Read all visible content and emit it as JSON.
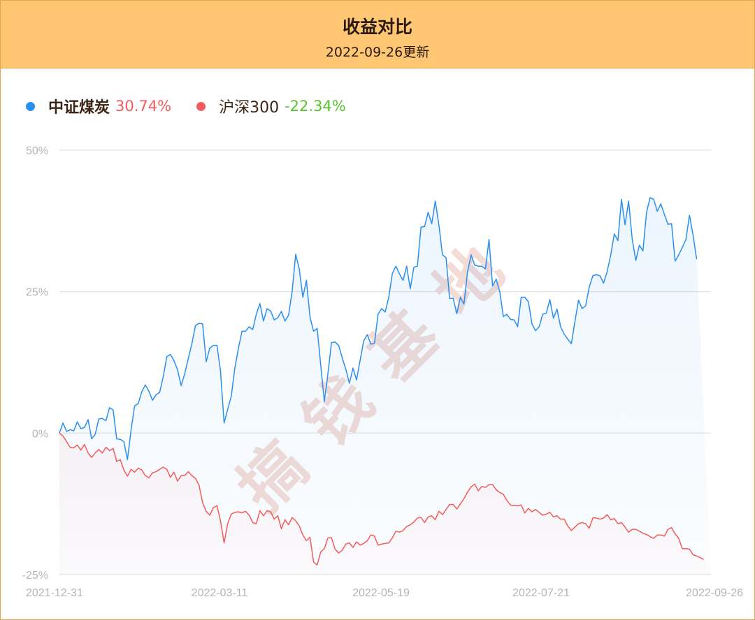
{
  "header": {
    "title": "收益对比",
    "subtitle": "2022-09-26更新"
  },
  "watermark": "搞钱基地",
  "legend": [
    {
      "name": "中证煤炭",
      "value": "30.74%",
      "color": "#2b8ff0",
      "value_color": "#f25c5c"
    },
    {
      "name": "沪深300",
      "value": "-22.34%",
      "color": "#f25c5c",
      "value_color": "#57c42e"
    }
  ],
  "chart_data": {
    "type": "area",
    "title": "收益对比",
    "subtitle": "2022-09-26更新",
    "ylim": [
      -25,
      50
    ],
    "yticks": [
      50,
      25,
      0,
      -25
    ],
    "ytick_labels": [
      "50%",
      "25%",
      "0%",
      "-25%"
    ],
    "x_tick_labels": [
      "2021-12-31",
      "2022-03-11",
      "2022-05-19",
      "2022-07-21",
      "2022-09-26"
    ],
    "grid": true,
    "legend_position": "top-left",
    "n_points": 183,
    "series": [
      {
        "name": "中证煤炭",
        "color": "#2b8ff0",
        "values": [
          0,
          1.8,
          0.3,
          0.6,
          0.4,
          2.0,
          0.8,
          1.0,
          2.4,
          -1.0,
          -0.2,
          2.5,
          2.6,
          2.2,
          4.5,
          4.1,
          -1.0,
          -1.1,
          -1.5,
          -4.7,
          0.5,
          4.8,
          5.2,
          7.3,
          8.5,
          7.4,
          5.8,
          6.8,
          7.2,
          10.0,
          13.5,
          13.9,
          12.8,
          11.2,
          8.4,
          10.5,
          13.2,
          15.8,
          19.0,
          19.4,
          19.3,
          12.6,
          15.0,
          15.5,
          15.5,
          11.0,
          1.8,
          4.2,
          6.5,
          11.5,
          15.0,
          18.0,
          18.0,
          18.8,
          18.3,
          21.0,
          22.9,
          19.8,
          22.0,
          21.6,
          20.0,
          20.4,
          21.5,
          19.8,
          20.8,
          25.0,
          31.6,
          29.0,
          24.0,
          27.0,
          20.5,
          18.0,
          18.5,
          12.0,
          5.6,
          10.5,
          16.0,
          16.1,
          15.5,
          13.3,
          11.3,
          8.8,
          11.5,
          9.4,
          12.9,
          16.3,
          17.4,
          15.7,
          15.9,
          21.0,
          22.0,
          21.4,
          24.0,
          28.2,
          29.5,
          28.1,
          27.0,
          29.5,
          25.5,
          29.3,
          29.5,
          36.4,
          36.5,
          39.0,
          37.0,
          41.0,
          36.8,
          31.5,
          31.0,
          23.8,
          23.8,
          21.1,
          24.0,
          22.8,
          28.5,
          31.5,
          29.7,
          29.5,
          29.5,
          29.0,
          34.2,
          26.0,
          27.2,
          25.0,
          20.6,
          21.0,
          20.1,
          20.0,
          18.8,
          24.0,
          24.0,
          23.2,
          19.3,
          18.1,
          18.8,
          21.0,
          21.2,
          23.6,
          20.3,
          21.9,
          18.8,
          17.5,
          16.6,
          15.8,
          19.7,
          23.5,
          22.0,
          22.5,
          25.8,
          27.8,
          28.0,
          27.8,
          26.5,
          28.5,
          31.5,
          35.2,
          34.0,
          41.3,
          36.8,
          41.0,
          34.3,
          30.5,
          33.2,
          32.2,
          39.0,
          41.6,
          41.3,
          39.2,
          40.5,
          38.6,
          36.9,
          37.0,
          30.4,
          31.5,
          32.8,
          34.2,
          38.5,
          35.0,
          30.74
        ]
      },
      {
        "name": "沪深300",
        "color": "#f25c5c",
        "values": [
          0,
          -0.5,
          -1.5,
          -2.5,
          -2.6,
          -2.1,
          -3.0,
          -2.0,
          -3.5,
          -4.3,
          -3.5,
          -2.9,
          -3.5,
          -2.5,
          -3.1,
          -2.7,
          -5.0,
          -4.7,
          -6.5,
          -7.6,
          -6.4,
          -6.9,
          -6.2,
          -6.5,
          -7.5,
          -7.9,
          -7.0,
          -6.8,
          -6.4,
          -6.0,
          -6.4,
          -7.8,
          -6.9,
          -8.5,
          -7.5,
          -7.5,
          -6.8,
          -7.5,
          -8.0,
          -9.2,
          -12.3,
          -13.8,
          -14.5,
          -13.2,
          -12.8,
          -15.5,
          -19.4,
          -16.0,
          -14.3,
          -14.0,
          -13.9,
          -14.1,
          -13.8,
          -14.5,
          -15.8,
          -16.0,
          -13.7,
          -14.6,
          -13.7,
          -13.9,
          -15.2,
          -14.6,
          -16.9,
          -15.3,
          -16.2,
          -14.9,
          -15.5,
          -16.4,
          -18.0,
          -19.0,
          -18.4,
          -22.8,
          -23.3,
          -21.0,
          -20.4,
          -18.5,
          -18.5,
          -20.5,
          -21.2,
          -20.7,
          -19.6,
          -19.4,
          -20.2,
          -19.2,
          -19.8,
          -19.5,
          -19.0,
          -18.0,
          -18.2,
          -19.8,
          -19.6,
          -19.5,
          -19.4,
          -18.5,
          -17.3,
          -17.5,
          -17.2,
          -16.5,
          -16.2,
          -15.7,
          -15.0,
          -14.9,
          -15.8,
          -14.8,
          -14.6,
          -15.3,
          -13.8,
          -14.4,
          -13.5,
          -12.6,
          -12.6,
          -13.4,
          -12.5,
          -11.6,
          -10.4,
          -9.5,
          -9.0,
          -10.2,
          -9.4,
          -9.6,
          -9.1,
          -9.1,
          -10.0,
          -10.5,
          -10.8,
          -11.9,
          -12.7,
          -12.8,
          -12.8,
          -12.7,
          -14.1,
          -13.3,
          -13.9,
          -13.5,
          -14.0,
          -14.5,
          -14.3,
          -14.0,
          -14.8,
          -14.6,
          -15.2,
          -15.2,
          -16.4,
          -17.2,
          -16.6,
          -16.0,
          -15.8,
          -16.0,
          -16.8,
          -15.0,
          -15.0,
          -15.2,
          -15.0,
          -14.4,
          -15.3,
          -15.1,
          -16.0,
          -15.8,
          -16.6,
          -17.5,
          -17.0,
          -17.0,
          -17.3,
          -17.7,
          -17.9,
          -18.3,
          -18.6,
          -18.0,
          -18.0,
          -18.2,
          -17.0,
          -16.7,
          -17.8,
          -18.6,
          -20.4,
          -20.4,
          -20.5,
          -21.5,
          -21.7,
          -22.0,
          -22.34
        ]
      }
    ]
  }
}
